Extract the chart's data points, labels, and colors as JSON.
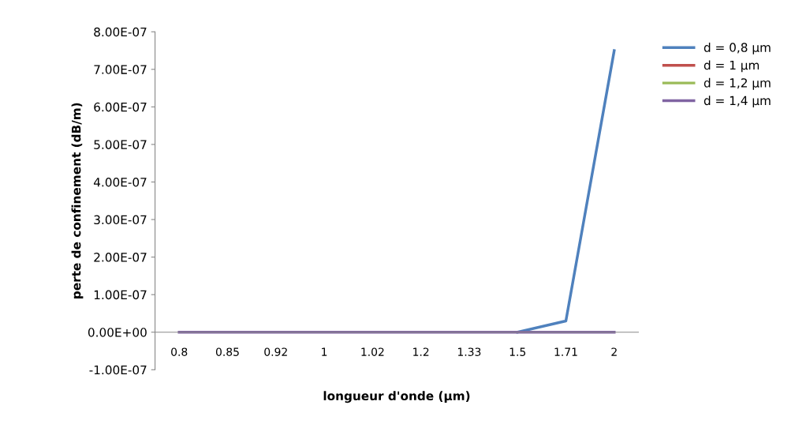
{
  "chart_data": {
    "type": "line",
    "xlabel": "longueur d'onde (µm)",
    "ylabel": "perte de confinement (dB/m)",
    "categories": [
      "0.8",
      "0.85",
      "0.92",
      "1",
      "1.02",
      "1.2",
      "1.33",
      "1.5",
      "1.71",
      "2"
    ],
    "series": [
      {
        "name": "d = 0,8 µm",
        "color": "#4f81bd",
        "values": [
          null,
          null,
          null,
          null,
          null,
          null,
          null,
          0,
          3e-08,
          7.5e-07
        ]
      },
      {
        "name": "d = 1 µm",
        "color": "#c0504d",
        "values": [
          null,
          null,
          null,
          null,
          null,
          null,
          null,
          null,
          null,
          null
        ]
      },
      {
        "name": "d = 1,2 µm",
        "color": "#9bbb59",
        "values": [
          null,
          null,
          null,
          null,
          null,
          null,
          null,
          null,
          null,
          null
        ]
      },
      {
        "name": "d = 1,4 µm",
        "color": "#8064a2",
        "values": [
          0,
          0,
          0,
          0,
          0,
          0,
          0,
          0,
          0,
          0
        ]
      }
    ],
    "ylim": [
      -1e-07,
      8e-07
    ],
    "yticks": [
      {
        "value": -1e-07,
        "label": "-1.00E-07"
      },
      {
        "value": 0,
        "label": "0.00E+00"
      },
      {
        "value": 1e-07,
        "label": "1.00E-07"
      },
      {
        "value": 2e-07,
        "label": "2.00E-07"
      },
      {
        "value": 3e-07,
        "label": "3.00E-07"
      },
      {
        "value": 4e-07,
        "label": "4.00E-07"
      },
      {
        "value": 5e-07,
        "label": "5.00E-07"
      },
      {
        "value": 6e-07,
        "label": "6.00E-07"
      },
      {
        "value": 7e-07,
        "label": "7.00E-07"
      },
      {
        "value": 8e-07,
        "label": "8.00E-07"
      }
    ],
    "grid": false,
    "legend": "top right",
    "marker": "none",
    "line_style": "solid"
  }
}
